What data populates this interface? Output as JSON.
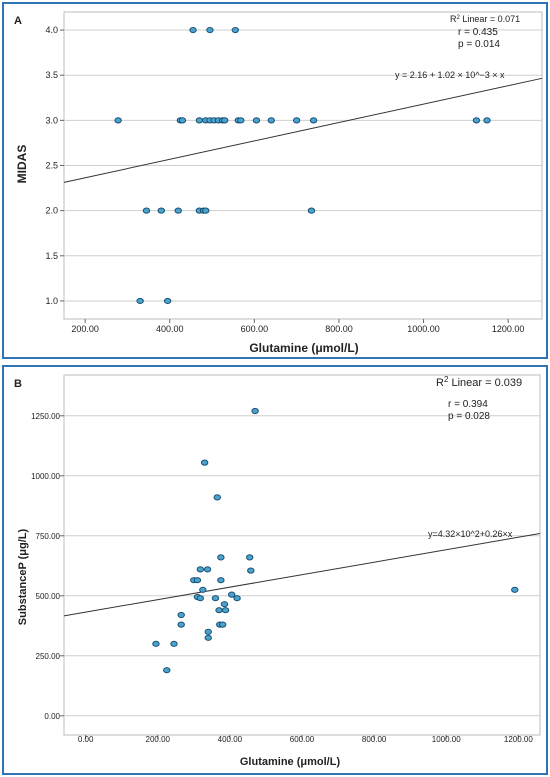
{
  "chart_data": [
    {
      "panel_label": "A",
      "type": "scatter",
      "xlabel": "Glutamine (μmol/L)",
      "ylabel": "MIDAS",
      "xlim": [
        150,
        1280
      ],
      "ylim": [
        0.8,
        4.2
      ],
      "xticks": [
        200,
        400,
        600,
        800,
        1000,
        1200
      ],
      "xtick_labels": [
        "200.00",
        "400.00",
        "600.00",
        "800.00",
        "1000.00",
        "1200.00"
      ],
      "yticks": [
        1.0,
        1.5,
        2.0,
        2.5,
        3.0,
        3.5,
        4.0
      ],
      "ytick_labels": [
        "1.0",
        "1.5",
        "2.0",
        "2.5",
        "3.0",
        "3.5",
        "4.0"
      ],
      "grid": "horizontal",
      "points": [
        {
          "x": 455,
          "y": 4.0
        },
        {
          "x": 495,
          "y": 4.0
        },
        {
          "x": 555,
          "y": 4.0
        },
        {
          "x": 278,
          "y": 3.0
        },
        {
          "x": 425,
          "y": 3.0
        },
        {
          "x": 430,
          "y": 3.0
        },
        {
          "x": 470,
          "y": 3.0
        },
        {
          "x": 485,
          "y": 3.0
        },
        {
          "x": 495,
          "y": 3.0
        },
        {
          "x": 505,
          "y": 3.0
        },
        {
          "x": 515,
          "y": 3.0
        },
        {
          "x": 525,
          "y": 3.0
        },
        {
          "x": 530,
          "y": 3.0
        },
        {
          "x": 562,
          "y": 3.0
        },
        {
          "x": 568,
          "y": 3.0
        },
        {
          "x": 605,
          "y": 3.0
        },
        {
          "x": 640,
          "y": 3.0
        },
        {
          "x": 700,
          "y": 3.0
        },
        {
          "x": 740,
          "y": 3.0
        },
        {
          "x": 1125,
          "y": 3.0
        },
        {
          "x": 1150,
          "y": 3.0
        },
        {
          "x": 345,
          "y": 2.0
        },
        {
          "x": 380,
          "y": 2.0
        },
        {
          "x": 420,
          "y": 2.0
        },
        {
          "x": 470,
          "y": 2.0
        },
        {
          "x": 480,
          "y": 2.0
        },
        {
          "x": 485,
          "y": 2.0
        },
        {
          "x": 735,
          "y": 2.0
        },
        {
          "x": 330,
          "y": 1.0
        },
        {
          "x": 395,
          "y": 1.0
        }
      ],
      "fit_line": {
        "intercept": 2.16,
        "slope": 0.00102
      },
      "equation": "y = 2.16 + 1.02 × 10^−3 × x",
      "r2_prefix": "R",
      "r2_sup": "2",
      "r2_text": " Linear = 0.071",
      "r_text": "r = 0.435",
      "p_text": "p = 0.014"
    },
    {
      "panel_label": "B",
      "type": "scatter",
      "xlabel": "Glutamine (μmol/L)",
      "ylabel": "SubstanceP (μg/L)",
      "xlim": [
        -60,
        1260
      ],
      "ylim": [
        -80,
        1420
      ],
      "xticks": [
        0,
        200,
        400,
        600,
        800,
        1000,
        1200
      ],
      "xtick_labels": [
        "0.00",
        "200.00",
        "400.00",
        "600.00",
        "800.00",
        "1000.00",
        "1200.00"
      ],
      "yticks": [
        0,
        250,
        500,
        750,
        1000,
        1250
      ],
      "ytick_labels": [
        "0.00",
        "250.00",
        "500.00",
        "750.00",
        "1000.00",
        "1250.00"
      ],
      "grid": "horizontal",
      "points": [
        {
          "x": 195,
          "y": 300
        },
        {
          "x": 225,
          "y": 190
        },
        {
          "x": 245,
          "y": 300
        },
        {
          "x": 265,
          "y": 420
        },
        {
          "x": 265,
          "y": 380
        },
        {
          "x": 300,
          "y": 565
        },
        {
          "x": 310,
          "y": 565
        },
        {
          "x": 310,
          "y": 495
        },
        {
          "x": 318,
          "y": 610
        },
        {
          "x": 318,
          "y": 490
        },
        {
          "x": 325,
          "y": 525
        },
        {
          "x": 330,
          "y": 1055
        },
        {
          "x": 338,
          "y": 610
        },
        {
          "x": 340,
          "y": 350
        },
        {
          "x": 340,
          "y": 325
        },
        {
          "x": 360,
          "y": 490
        },
        {
          "x": 365,
          "y": 910
        },
        {
          "x": 370,
          "y": 440
        },
        {
          "x": 372,
          "y": 380
        },
        {
          "x": 375,
          "y": 660
        },
        {
          "x": 375,
          "y": 565
        },
        {
          "x": 380,
          "y": 380
        },
        {
          "x": 385,
          "y": 465
        },
        {
          "x": 388,
          "y": 440
        },
        {
          "x": 405,
          "y": 505
        },
        {
          "x": 420,
          "y": 490
        },
        {
          "x": 455,
          "y": 660
        },
        {
          "x": 458,
          "y": 605
        },
        {
          "x": 470,
          "y": 1270
        },
        {
          "x": 1190,
          "y": 525
        }
      ],
      "fit_line": {
        "intercept": 432,
        "slope": 0.26
      },
      "equation": "y=4.32×10^2+0.26×x",
      "r2_prefix": "R",
      "r2_sup": "2",
      "r2_text": " Linear = 0.039",
      "r_text": "r = 0.394",
      "p_text": "p = 0.028"
    }
  ],
  "colors": {
    "border": "#2e75b6",
    "point_fill": "#4aa3cf",
    "point_stroke": "#1b4f72",
    "grid": "#cfcfcf",
    "fit_line": "#333333"
  }
}
